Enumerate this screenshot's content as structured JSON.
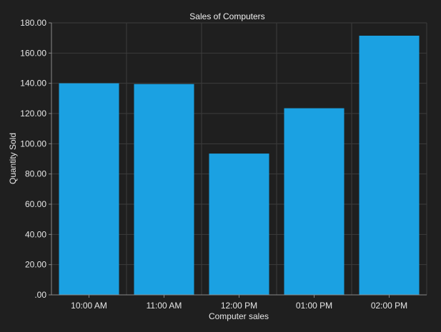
{
  "chart_data": {
    "type": "bar",
    "title": "Sales of Computers",
    "xlabel": "Computer sales",
    "ylabel": "Quantity Sold",
    "categories": [
      "10:00 AM",
      "11:00 AM",
      "12:00 PM",
      "01:00 PM",
      "02:00 PM"
    ],
    "values": [
      140,
      139.5,
      93.5,
      123.5,
      171.5
    ],
    "ylim": [
      0,
      180
    ],
    "yticks": [
      0,
      20,
      40,
      60,
      80,
      100,
      120,
      140,
      160,
      180
    ],
    "ytick_labels": [
      ".00",
      "20.00",
      "40.00",
      "60.00",
      "80.00",
      "100.00",
      "120.00",
      "140.00",
      "160.00",
      "180.00"
    ],
    "grid": true,
    "legend": "none",
    "colors": {
      "background": "#1f1f1f",
      "bar": "#1ba1e2",
      "grid": "#3c3c3c",
      "axis": "#8a8a8a",
      "text": "#e6e6e6"
    }
  }
}
